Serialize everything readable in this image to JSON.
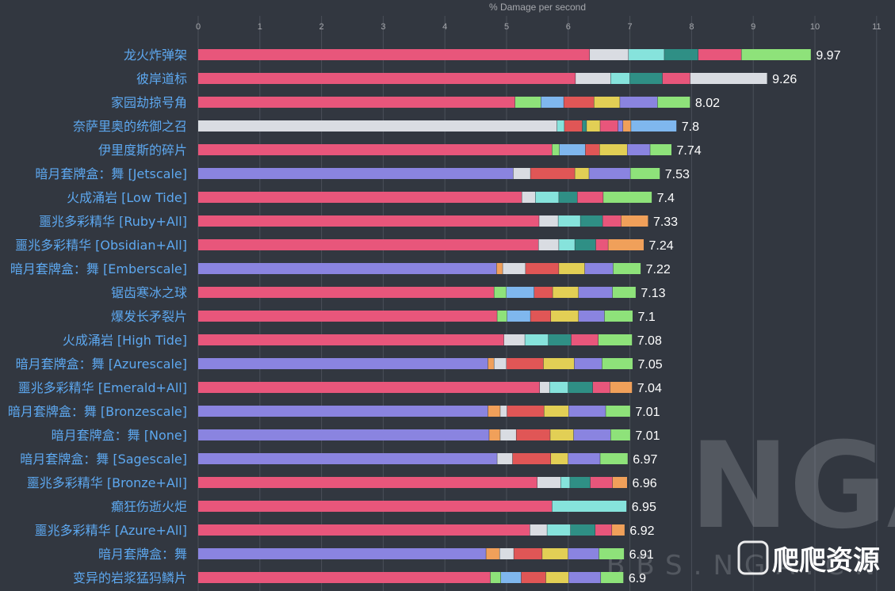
{
  "colors": {
    "background": "#323740",
    "grid": "#4a4f59",
    "axis_text": "#a6a8ad",
    "category_label": "#5da8f0",
    "value_label": "#ffffff",
    "watermark": "#6b6f77"
  },
  "watermark": {
    "logo_text": "NGA",
    "site_text": "BBS.NGA.CN",
    "badge_text": "爬爬资源"
  },
  "chart_data": {
    "type": "bar",
    "orientation": "horizontal",
    "stacked": true,
    "title": "",
    "xlabel": "% Damage per second",
    "ylabel": "",
    "xlim": [
      0,
      11
    ],
    "xticks": [
      0,
      1,
      2,
      3,
      4,
      5,
      6,
      7,
      8,
      9,
      10,
      11
    ],
    "grid": "vertical",
    "rows": [
      {
        "label": "龙火炸弹架",
        "total_label": "9.97",
        "segments": [
          {
            "c": "#e8567b",
            "v": 6.35
          },
          {
            "c": "#d9dce2",
            "v": 0.63
          },
          {
            "c": "#86e3dc",
            "v": 0.58
          },
          {
            "c": "#2f8f85",
            "v": 0.55
          },
          {
            "c": "#e8567b",
            "v": 0.7
          },
          {
            "c": "#8ee27a",
            "v": 1.13
          }
        ]
      },
      {
        "label": "彼岸道标",
        "total_label": "9.26",
        "segments": [
          {
            "c": "#e8567b",
            "v": 6.12
          },
          {
            "c": "#d9dce2",
            "v": 0.57
          },
          {
            "c": "#86e3dc",
            "v": 0.31
          },
          {
            "c": "#2f8f85",
            "v": 0.53
          },
          {
            "c": "#e8567b",
            "v": 0.45
          },
          {
            "c": "#d9dce2",
            "v": 1.25
          }
        ]
      },
      {
        "label": "家园劫掠号角",
        "total_label": "8.02",
        "segments": [
          {
            "c": "#e8567b",
            "v": 5.14
          },
          {
            "c": "#8ee27a",
            "v": 0.42
          },
          {
            "c": "#7fb7ee",
            "v": 0.37
          },
          {
            "c": "#e05656",
            "v": 0.49
          },
          {
            "c": "#e2cf55",
            "v": 0.42
          },
          {
            "c": "#8a84e0",
            "v": 0.61
          },
          {
            "c": "#8ee27a",
            "v": 0.53
          }
        ]
      },
      {
        "label": "奈萨里奥的统御之召",
        "total_label": "7.8",
        "segments": [
          {
            "c": "#d9dce2",
            "v": 5.82
          },
          {
            "c": "#86e3dc",
            "v": 0.12
          },
          {
            "c": "#e05656",
            "v": 0.29
          },
          {
            "c": "#2f8f85",
            "v": 0.07
          },
          {
            "c": "#e2cf55",
            "v": 0.22
          },
          {
            "c": "#e8567b",
            "v": 0.29
          },
          {
            "c": "#8a84e0",
            "v": 0.08
          },
          {
            "c": "#f0a05a",
            "v": 0.13
          },
          {
            "c": "#7fb7ee",
            "v": 0.74
          }
        ]
      },
      {
        "label": "伊里度斯的碎片",
        "total_label": "7.74",
        "segments": [
          {
            "c": "#e8567b",
            "v": 5.74
          },
          {
            "c": "#8ee27a",
            "v": 0.12
          },
          {
            "c": "#7fb7ee",
            "v": 0.42
          },
          {
            "c": "#e05656",
            "v": 0.23
          },
          {
            "c": "#e2cf55",
            "v": 0.45
          },
          {
            "c": "#8a84e0",
            "v": 0.37
          },
          {
            "c": "#8ee27a",
            "v": 0.35
          }
        ]
      },
      {
        "label": "暗月套牌盒：舞 [Jetscale]",
        "total_label": "7.53",
        "segments": [
          {
            "c": "#8a84e0",
            "v": 5.11
          },
          {
            "c": "#d9dce2",
            "v": 0.28
          },
          {
            "c": "#e05656",
            "v": 0.72
          },
          {
            "c": "#e2cf55",
            "v": 0.23
          },
          {
            "c": "#8a84e0",
            "v": 0.67
          },
          {
            "c": "#8ee27a",
            "v": 0.48
          }
        ]
      },
      {
        "label": "火成涌岩 [Low Tide]",
        "total_label": "7.4",
        "segments": [
          {
            "c": "#e8567b",
            "v": 5.25
          },
          {
            "c": "#d9dce2",
            "v": 0.22
          },
          {
            "c": "#86e3dc",
            "v": 0.38
          },
          {
            "c": "#2f8f85",
            "v": 0.3
          },
          {
            "c": "#e8567b",
            "v": 0.42
          },
          {
            "c": "#8ee27a",
            "v": 0.79
          }
        ]
      },
      {
        "label": "噩兆多彩精华 [Ruby+All]",
        "total_label": "7.33",
        "segments": [
          {
            "c": "#e8567b",
            "v": 5.53
          },
          {
            "c": "#d9dce2",
            "v": 0.31
          },
          {
            "c": "#86e3dc",
            "v": 0.36
          },
          {
            "c": "#2f8f85",
            "v": 0.36
          },
          {
            "c": "#e8567b",
            "v": 0.3
          },
          {
            "c": "#f0a05a",
            "v": 0.44
          }
        ]
      },
      {
        "label": "噩兆多彩精华 [Obsidian+All]",
        "total_label": "7.24",
        "segments": [
          {
            "c": "#e8567b",
            "v": 5.52
          },
          {
            "c": "#d9dce2",
            "v": 0.33
          },
          {
            "c": "#86e3dc",
            "v": 0.26
          },
          {
            "c": "#2f8f85",
            "v": 0.34
          },
          {
            "c": "#e8567b",
            "v": 0.2
          },
          {
            "c": "#f0a05a",
            "v": 0.58
          }
        ]
      },
      {
        "label": "暗月套牌盒：舞 [Emberscale]",
        "total_label": "7.22",
        "segments": [
          {
            "c": "#8a84e0",
            "v": 4.84
          },
          {
            "c": "#f0a05a",
            "v": 0.1
          },
          {
            "c": "#d9dce2",
            "v": 0.37
          },
          {
            "c": "#e05656",
            "v": 0.54
          },
          {
            "c": "#e2cf55",
            "v": 0.42
          },
          {
            "c": "#8a84e0",
            "v": 0.46
          },
          {
            "c": "#8ee27a",
            "v": 0.45
          }
        ]
      },
      {
        "label": "锯齿寒冰之球",
        "total_label": "7.13",
        "segments": [
          {
            "c": "#e8567b",
            "v": 4.8
          },
          {
            "c": "#8ee27a",
            "v": 0.2
          },
          {
            "c": "#7fb7ee",
            "v": 0.45
          },
          {
            "c": "#e05656",
            "v": 0.3
          },
          {
            "c": "#e2cf55",
            "v": 0.42
          },
          {
            "c": "#8a84e0",
            "v": 0.55
          },
          {
            "c": "#8ee27a",
            "v": 0.38
          }
        ]
      },
      {
        "label": "爆发长矛裂片",
        "total_label": "7.1",
        "segments": [
          {
            "c": "#e8567b",
            "v": 4.85
          },
          {
            "c": "#8ee27a",
            "v": 0.16
          },
          {
            "c": "#7fb7ee",
            "v": 0.38
          },
          {
            "c": "#e05656",
            "v": 0.33
          },
          {
            "c": "#e2cf55",
            "v": 0.45
          },
          {
            "c": "#8a84e0",
            "v": 0.42
          },
          {
            "c": "#8ee27a",
            "v": 0.46
          }
        ]
      },
      {
        "label": "火成涌岩 [High Tide]",
        "total_label": "7.08",
        "segments": [
          {
            "c": "#e8567b",
            "v": 4.96
          },
          {
            "c": "#d9dce2",
            "v": 0.34
          },
          {
            "c": "#86e3dc",
            "v": 0.38
          },
          {
            "c": "#2f8f85",
            "v": 0.37
          },
          {
            "c": "#e8567b",
            "v": 0.44
          },
          {
            "c": "#8ee27a",
            "v": 0.55
          }
        ]
      },
      {
        "label": "暗月套牌盒：舞 [Azurescale]",
        "total_label": "7.05",
        "segments": [
          {
            "c": "#8a84e0",
            "v": 4.7
          },
          {
            "c": "#f0a05a",
            "v": 0.1
          },
          {
            "c": "#d9dce2",
            "v": 0.2
          },
          {
            "c": "#e05656",
            "v": 0.6
          },
          {
            "c": "#e2cf55",
            "v": 0.5
          },
          {
            "c": "#8a84e0",
            "v": 0.45
          },
          {
            "c": "#8ee27a",
            "v": 0.5
          }
        ]
      },
      {
        "label": "噩兆多彩精华 [Emerald+All]",
        "total_label": "7.04",
        "segments": [
          {
            "c": "#e8567b",
            "v": 5.54
          },
          {
            "c": "#d9dce2",
            "v": 0.16
          },
          {
            "c": "#86e3dc",
            "v": 0.3
          },
          {
            "c": "#2f8f85",
            "v": 0.4
          },
          {
            "c": "#e8567b",
            "v": 0.28
          },
          {
            "c": "#f0a05a",
            "v": 0.36
          }
        ]
      },
      {
        "label": "暗月套牌盒：舞 [Bronzescale]",
        "total_label": "7.01",
        "segments": [
          {
            "c": "#8a84e0",
            "v": 4.7
          },
          {
            "c": "#f0a05a",
            "v": 0.2
          },
          {
            "c": "#d9dce2",
            "v": 0.11
          },
          {
            "c": "#e05656",
            "v": 0.6
          },
          {
            "c": "#e2cf55",
            "v": 0.4
          },
          {
            "c": "#8a84e0",
            "v": 0.6
          },
          {
            "c": "#8ee27a",
            "v": 0.4
          }
        ]
      },
      {
        "label": "暗月套牌盒：舞 [None]",
        "total_label": "7.01",
        "segments": [
          {
            "c": "#8a84e0",
            "v": 4.72
          },
          {
            "c": "#f0a05a",
            "v": 0.18
          },
          {
            "c": "#d9dce2",
            "v": 0.26
          },
          {
            "c": "#e05656",
            "v": 0.55
          },
          {
            "c": "#e2cf55",
            "v": 0.38
          },
          {
            "c": "#8a84e0",
            "v": 0.6
          },
          {
            "c": "#8ee27a",
            "v": 0.32
          }
        ]
      },
      {
        "label": "暗月套牌盒：舞 [Sagescale]",
        "total_label": "6.97",
        "segments": [
          {
            "c": "#8a84e0",
            "v": 4.85
          },
          {
            "c": "#d9dce2",
            "v": 0.25
          },
          {
            "c": "#e05656",
            "v": 0.62
          },
          {
            "c": "#e2cf55",
            "v": 0.28
          },
          {
            "c": "#8a84e0",
            "v": 0.52
          },
          {
            "c": "#8ee27a",
            "v": 0.45
          }
        ]
      },
      {
        "label": "噩兆多彩精华 [Bronze+All]",
        "total_label": "6.96",
        "segments": [
          {
            "c": "#e8567b",
            "v": 5.5
          },
          {
            "c": "#d9dce2",
            "v": 0.38
          },
          {
            "c": "#86e3dc",
            "v": 0.15
          },
          {
            "c": "#2f8f85",
            "v": 0.33
          },
          {
            "c": "#e8567b",
            "v": 0.36
          },
          {
            "c": "#f0a05a",
            "v": 0.24
          }
        ]
      },
      {
        "label": "癫狂伤逝火炬",
        "total_label": "6.95",
        "segments": [
          {
            "c": "#e8567b",
            "v": 5.74
          },
          {
            "c": "#86e3dc",
            "v": 1.21
          }
        ]
      },
      {
        "label": "噩兆多彩精华 [Azure+All]",
        "total_label": "6.92",
        "segments": [
          {
            "c": "#e8567b",
            "v": 5.38
          },
          {
            "c": "#d9dce2",
            "v": 0.28
          },
          {
            "c": "#86e3dc",
            "v": 0.38
          },
          {
            "c": "#2f8f85",
            "v": 0.4
          },
          {
            "c": "#e8567b",
            "v": 0.27
          },
          {
            "c": "#f0a05a",
            "v": 0.21
          }
        ]
      },
      {
        "label": "暗月套牌盒：舞",
        "total_label": "6.91",
        "segments": [
          {
            "c": "#8a84e0",
            "v": 4.67
          },
          {
            "c": "#f0a05a",
            "v": 0.22
          },
          {
            "c": "#d9dce2",
            "v": 0.23
          },
          {
            "c": "#e05656",
            "v": 0.46
          },
          {
            "c": "#e2cf55",
            "v": 0.42
          },
          {
            "c": "#8a84e0",
            "v": 0.5
          },
          {
            "c": "#8ee27a",
            "v": 0.41
          }
        ]
      },
      {
        "label": "变异的岩浆猛犸鳞片",
        "total_label": "6.9",
        "segments": [
          {
            "c": "#e8567b",
            "v": 4.74
          },
          {
            "c": "#8ee27a",
            "v": 0.17
          },
          {
            "c": "#7fb7ee",
            "v": 0.33
          },
          {
            "c": "#e05656",
            "v": 0.4
          },
          {
            "c": "#e2cf55",
            "v": 0.37
          },
          {
            "c": "#8a84e0",
            "v": 0.52
          },
          {
            "c": "#8ee27a",
            "v": 0.37
          }
        ]
      }
    ]
  }
}
